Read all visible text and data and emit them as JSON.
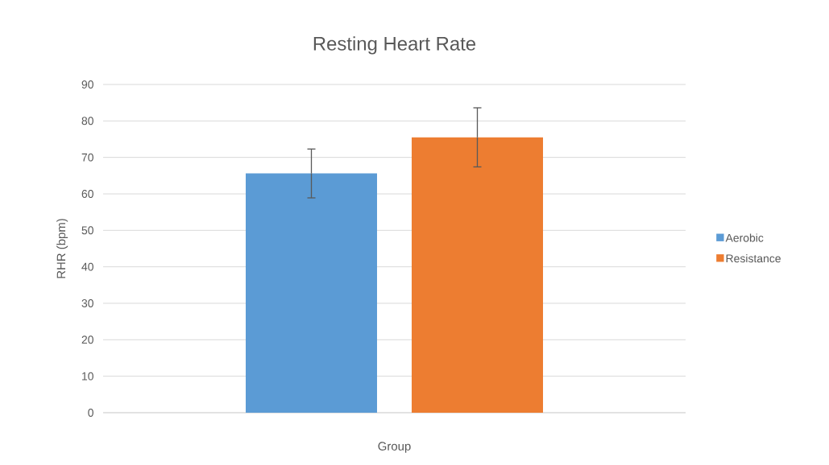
{
  "chart_data": {
    "type": "bar",
    "title": "Resting Heart Rate",
    "xlabel": "Group",
    "ylabel": "RHR (bpm)",
    "categories": [
      null
    ],
    "series": [
      {
        "name": "Aerobic",
        "color": "#5b9bd5",
        "values": [
          65.6
        ],
        "errors": [
          6.7
        ]
      },
      {
        "name": "Resistance",
        "color": "#ed7d31",
        "values": [
          75.5
        ],
        "errors": [
          8.1
        ]
      }
    ],
    "ylim": [
      0,
      90
    ],
    "yticks": [
      0,
      10,
      20,
      30,
      40,
      50,
      60,
      70,
      80,
      90
    ],
    "grid": "y",
    "legend": "right"
  }
}
